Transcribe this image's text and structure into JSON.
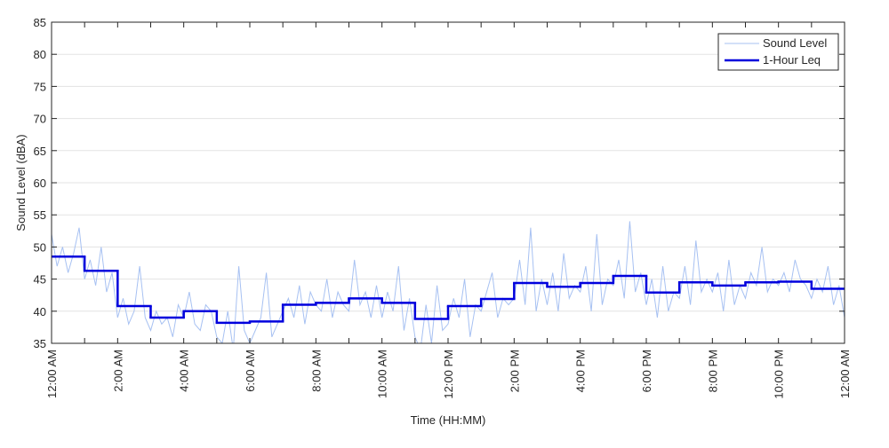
{
  "chart_data": {
    "type": "line",
    "xlabel": "Time (HH:MM)",
    "ylabel": "Sound Level (dBA)",
    "xlim": [
      0,
      1440
    ],
    "ylim": [
      35,
      85
    ],
    "xticks": [
      {
        "value": 0,
        "label": "12:00 AM"
      },
      {
        "value": 120,
        "label": "2:00 AM"
      },
      {
        "value": 240,
        "label": "4:00 AM"
      },
      {
        "value": 360,
        "label": "6:00 AM"
      },
      {
        "value": 480,
        "label": "8:00 AM"
      },
      {
        "value": 600,
        "label": "10:00 AM"
      },
      {
        "value": 720,
        "label": "12:00 PM"
      },
      {
        "value": 840,
        "label": "2:00 PM"
      },
      {
        "value": 960,
        "label": "4:00 PM"
      },
      {
        "value": 1080,
        "label": "6:00 PM"
      },
      {
        "value": 1200,
        "label": "8:00 PM"
      },
      {
        "value": 1320,
        "label": "10:00 PM"
      },
      {
        "value": 1440,
        "label": "12:00 AM"
      }
    ],
    "xminorticks": [
      60,
      180,
      300,
      420,
      540,
      660,
      780,
      900,
      1020,
      1140,
      1260,
      1380
    ],
    "yticks": [
      35,
      40,
      45,
      50,
      55,
      60,
      65,
      70,
      75,
      80,
      85
    ],
    "grid": true,
    "legend": "upper right",
    "series": [
      {
        "name": "Sound Level",
        "color": "#a7c1f2",
        "x": [
          0,
          10,
          20,
          30,
          40,
          50,
          60,
          70,
          80,
          90,
          100,
          110,
          120,
          130,
          140,
          150,
          160,
          170,
          180,
          190,
          200,
          210,
          220,
          230,
          240,
          250,
          260,
          270,
          280,
          290,
          300,
          310,
          320,
          330,
          340,
          350,
          360,
          370,
          380,
          390,
          400,
          410,
          420,
          430,
          440,
          450,
          460,
          470,
          480,
          490,
          500,
          510,
          520,
          530,
          540,
          550,
          560,
          570,
          580,
          590,
          600,
          610,
          620,
          630,
          640,
          650,
          660,
          670,
          680,
          690,
          700,
          710,
          720,
          730,
          740,
          750,
          760,
          770,
          780,
          790,
          800,
          810,
          820,
          830,
          840,
          850,
          860,
          870,
          880,
          890,
          900,
          910,
          920,
          930,
          940,
          950,
          960,
          970,
          980,
          990,
          1000,
          1010,
          1020,
          1030,
          1040,
          1050,
          1060,
          1070,
          1080,
          1090,
          1100,
          1110,
          1120,
          1130,
          1140,
          1150,
          1160,
          1170,
          1180,
          1190,
          1200,
          1210,
          1220,
          1230,
          1240,
          1250,
          1260,
          1270,
          1280,
          1290,
          1300,
          1310,
          1320,
          1330,
          1340,
          1350,
          1360,
          1370,
          1380,
          1390,
          1400,
          1410,
          1420,
          1430,
          1440
        ],
        "values": [
          52,
          47,
          50,
          46,
          49,
          53,
          45,
          48,
          44,
          50,
          43,
          46,
          39,
          42,
          38,
          40,
          47,
          39,
          37,
          40,
          38,
          39,
          36,
          41,
          39,
          43,
          38,
          37,
          41,
          40,
          36,
          35,
          40,
          34,
          47,
          37,
          35,
          37,
          39,
          46,
          36,
          38,
          40,
          42,
          39,
          44,
          38,
          43,
          41,
          40,
          45,
          39,
          43,
          41,
          40,
          48,
          41,
          43,
          39,
          44,
          39,
          43,
          40,
          47,
          37,
          42,
          36,
          34,
          41,
          35,
          44,
          37,
          38,
          42,
          39,
          45,
          36,
          41,
          40,
          43,
          46,
          39,
          42,
          41,
          42,
          48,
          41,
          53,
          40,
          45,
          41,
          46,
          40,
          49,
          42,
          44,
          43,
          47,
          40,
          52,
          41,
          45,
          44,
          48,
          42,
          54,
          43,
          46,
          41,
          45,
          39,
          47,
          40,
          43,
          42,
          47,
          41,
          51,
          43,
          45,
          43,
          46,
          40,
          48,
          41,
          44,
          42,
          46,
          44,
          50,
          43,
          45,
          44,
          46,
          43,
          48,
          45,
          44,
          42,
          45,
          43,
          47,
          41,
          44,
          39
        ]
      },
      {
        "name": "1-Hour Leq",
        "color": "#0000dd",
        "step": "post",
        "x": [
          0,
          60,
          120,
          180,
          240,
          300,
          360,
          420,
          480,
          540,
          600,
          660,
          720,
          780,
          840,
          900,
          960,
          1020,
          1080,
          1140,
          1200,
          1260,
          1320,
          1380
        ],
        "values": [
          48.5,
          46.3,
          40.8,
          39.0,
          40.0,
          38.2,
          38.4,
          41.0,
          41.3,
          42.0,
          41.3,
          38.8,
          40.8,
          41.9,
          44.4,
          43.8,
          44.4,
          45.5,
          42.9,
          44.5,
          44.0,
          44.5,
          44.6,
          43.5
        ]
      }
    ]
  }
}
